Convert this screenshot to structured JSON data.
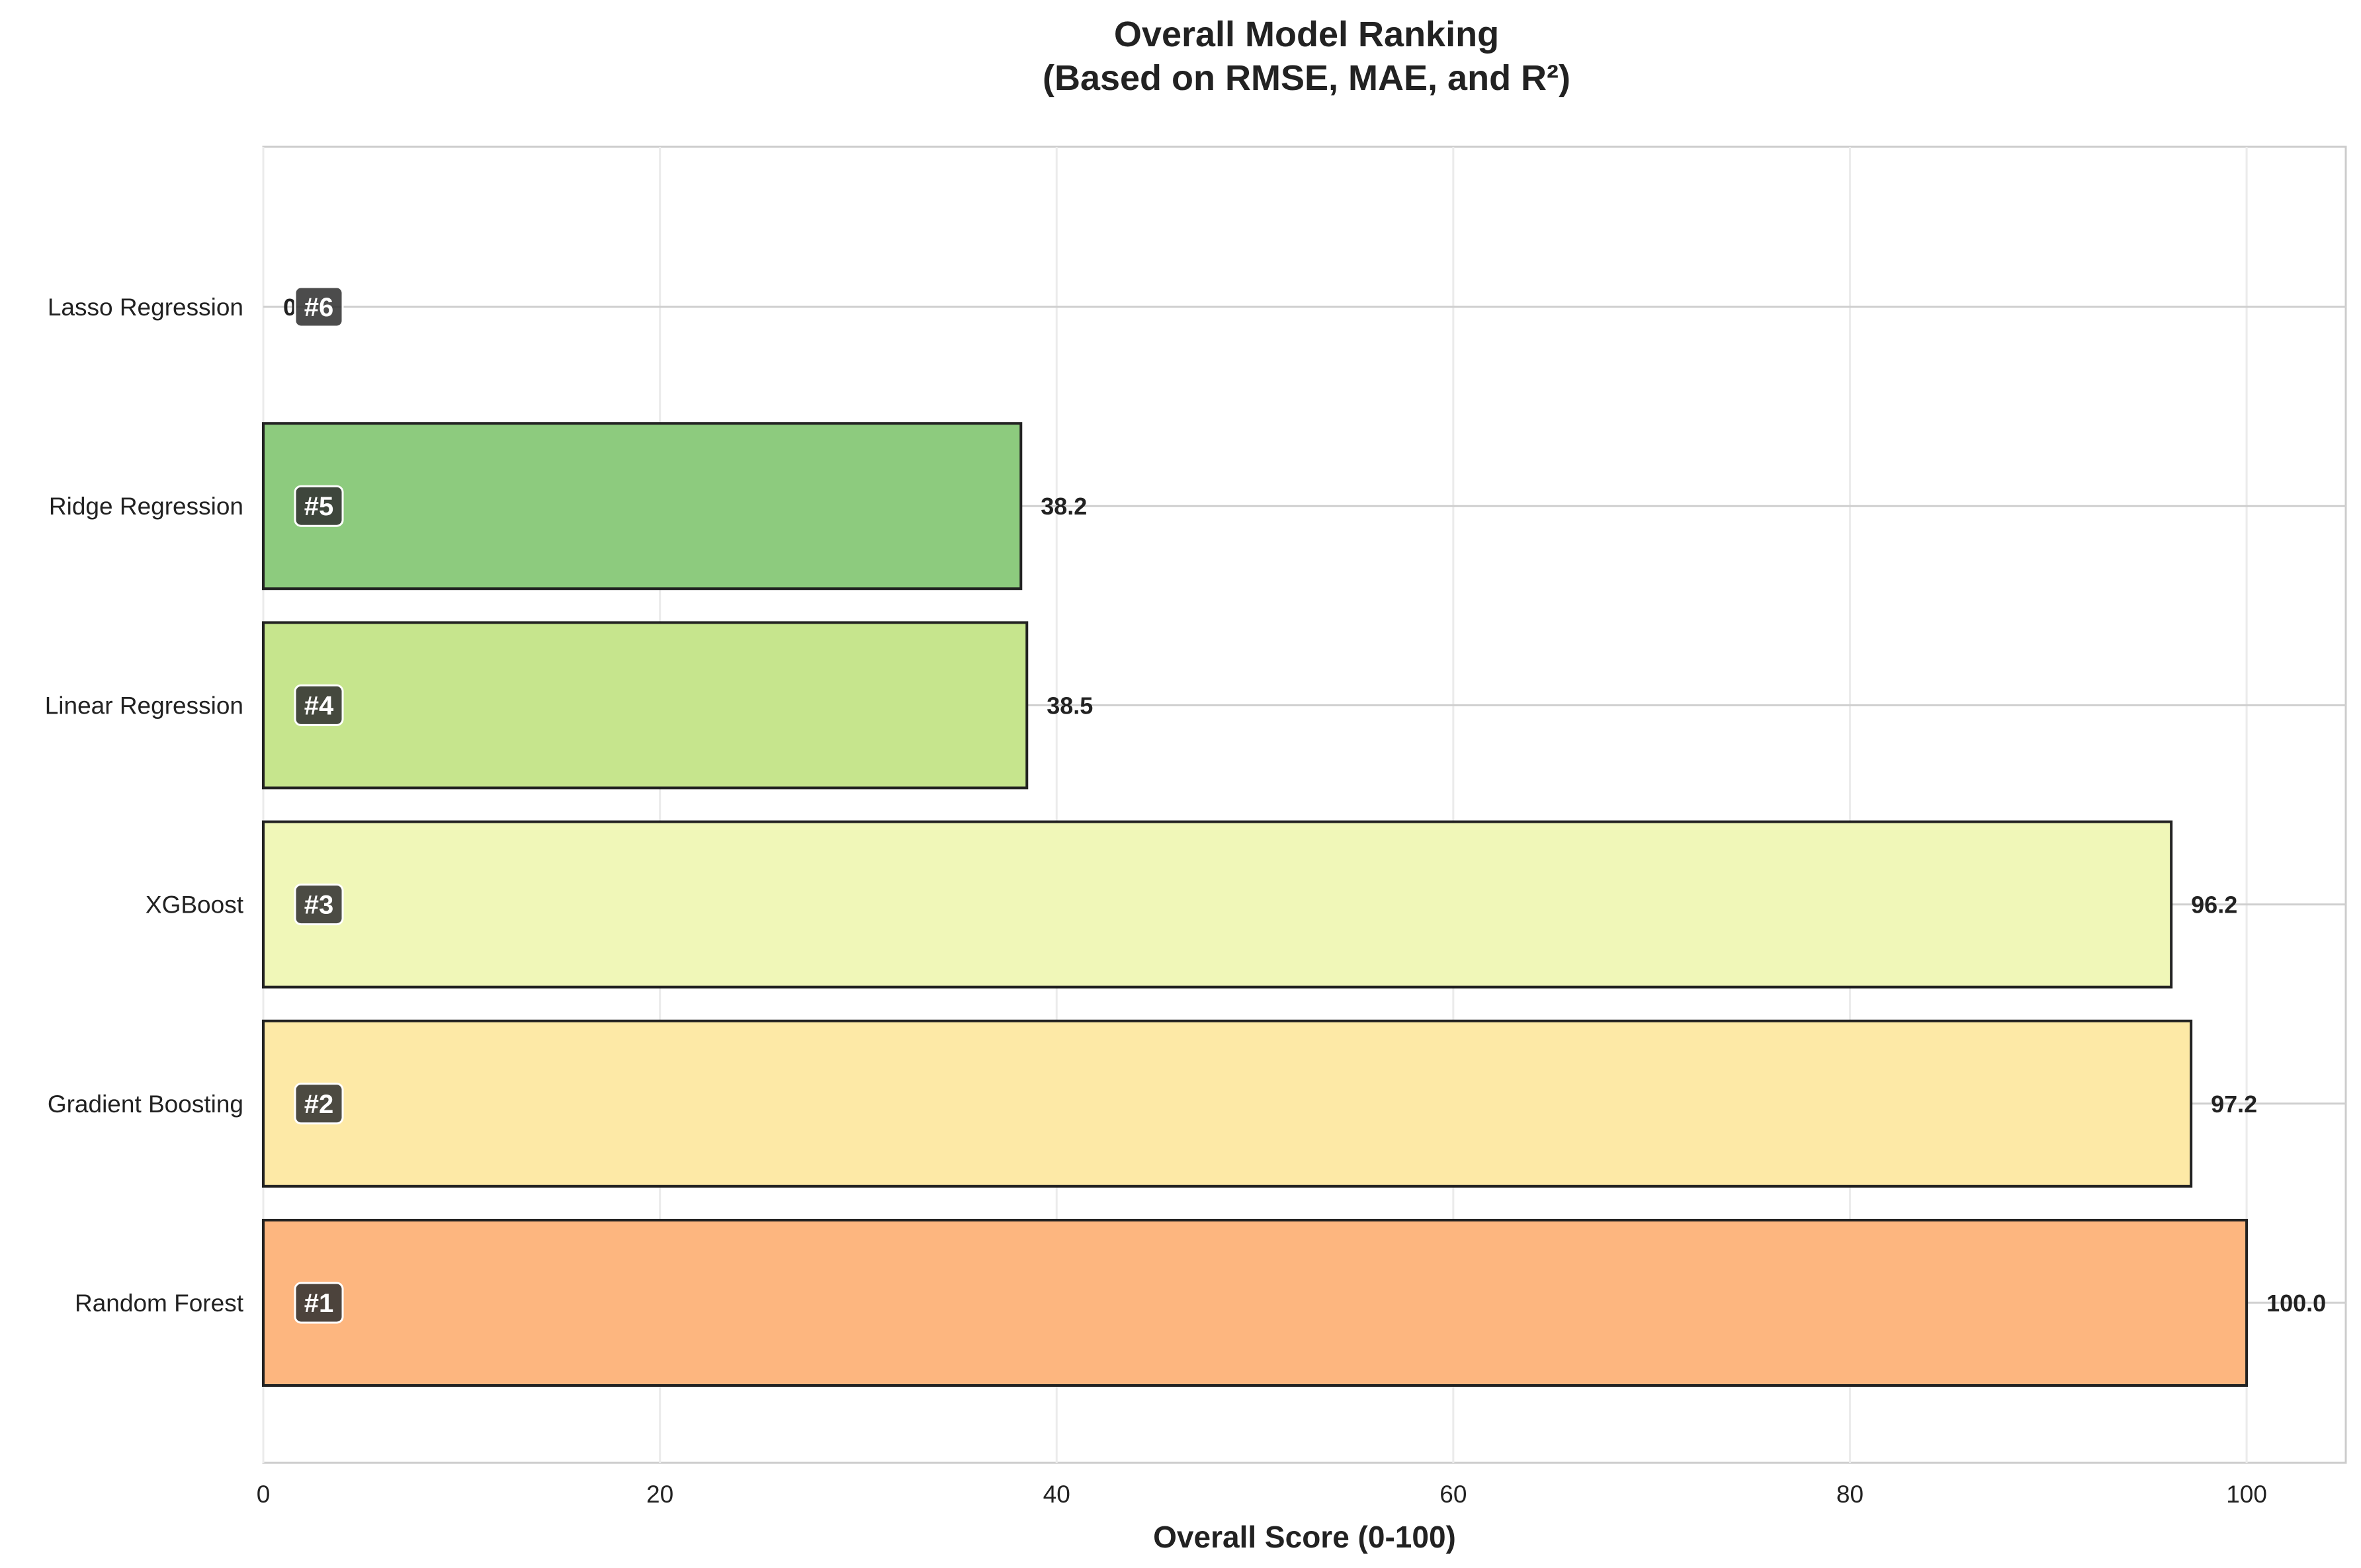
{
  "chart_data": {
    "type": "bar",
    "orientation": "horizontal",
    "title": "Overall Model Ranking",
    "subtitle": "(Based on RMSE, MAE, and R²)",
    "xlabel": "Overall Score (0-100)",
    "ylabel": "",
    "xlim": [
      0,
      105
    ],
    "xticks": [
      0,
      20,
      40,
      60,
      80,
      100
    ],
    "grid": true,
    "categories": [
      "Random Forest",
      "Gradient Boosting",
      "XGBoost",
      "Linear Regression",
      "Ridge Regression",
      "Lasso Regression"
    ],
    "values": [
      100.0,
      97.2,
      96.2,
      38.5,
      38.2,
      0.0
    ],
    "value_labels": [
      "100.0",
      "97.2",
      "96.2",
      "38.5",
      "38.2",
      "0"
    ],
    "ranks": [
      "#1",
      "#2",
      "#3",
      "#4",
      "#5",
      "#6"
    ],
    "colors": [
      "#fdb67f",
      "#fde9a6",
      "#f0f7b8",
      "#c6e58d",
      "#8dcb7e",
      "#1a9850"
    ]
  }
}
